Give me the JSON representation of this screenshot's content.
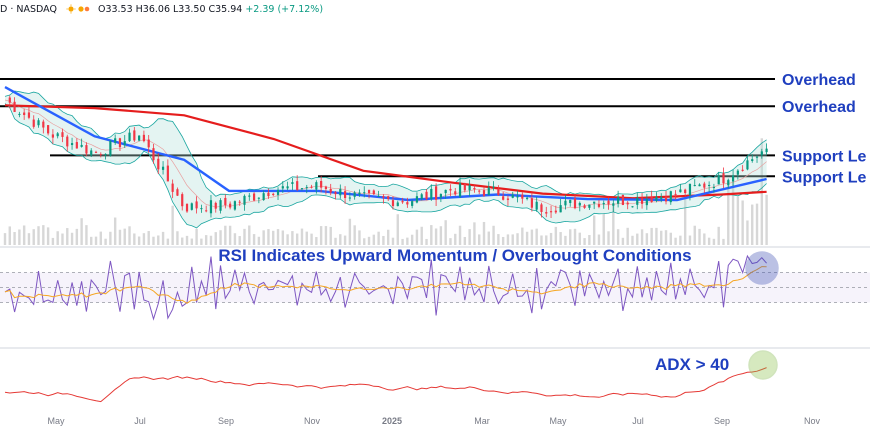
{
  "header": {
    "symbol": "D · NASDAQ",
    "open": "O33.53",
    "high": "H36.06",
    "low": "L33.50",
    "close": "C35.94",
    "change": "+2.39 (+7.12%)"
  },
  "colors": {
    "price_up": "#089981",
    "price_down": "#f23645",
    "sma_50": "#2962ff",
    "sma_200": "#e51d1d",
    "bollinger": "#1aa6a0",
    "rsi": "#7e57c2",
    "rsi_ma": "#f5a623",
    "adx": "#e53935",
    "volume": "#c9c9c9"
  },
  "chart_data": [
    {
      "type": "candlestick",
      "panel": "price",
      "overlays": [
        "50-day moving average",
        "200-day moving average",
        "Bollinger Bands"
      ],
      "horizontal_lines": [
        {
          "label": "Overhead",
          "value": 43.6
        },
        {
          "label": "Overhead",
          "value": 40.6
        },
        {
          "label": "Support Le",
          "value": 35.2
        },
        {
          "label": "Support Le",
          "value": 32.9
        }
      ],
      "x_ticks": [
        "May",
        "Jul",
        "Sep",
        "Nov",
        "2025",
        "Mar",
        "May",
        "Jul",
        "Sep",
        "Nov"
      ],
      "close_path": [
        {
          "month": "Apr 2024",
          "close": 41.3
        },
        {
          "month": "May 2024",
          "close": 37.6
        },
        {
          "month": "Jun 2024",
          "close": 35.5
        },
        {
          "month": "Jul 2024",
          "close": 37.5
        },
        {
          "month": "Aug 2024",
          "close": 29.5
        },
        {
          "month": "Sep 2024",
          "close": 29.8
        },
        {
          "month": "Oct 2024",
          "close": 31.5
        },
        {
          "month": "Nov 2024",
          "close": 31.8
        },
        {
          "month": "Dec 2024",
          "close": 30.5
        },
        {
          "month": "Jan 2025",
          "close": 30.2
        },
        {
          "month": "Feb 2025",
          "close": 31.5
        },
        {
          "month": "Mar 2025",
          "close": 31.2
        },
        {
          "month": "Apr 2025",
          "close": 29.4
        },
        {
          "month": "May 2025",
          "close": 30.1
        },
        {
          "month": "Jun 2025",
          "close": 30.3
        },
        {
          "month": "Jul 2025",
          "close": 31.0
        },
        {
          "month": "Aug 2025",
          "close": 32.6
        },
        {
          "month": "Sep 2025",
          "close": 35.94
        }
      ],
      "sma_200_path": [
        {
          "month": "Apr 2024",
          "value": 40.7
        },
        {
          "month": "Jun 2024",
          "value": 40.4
        },
        {
          "month": "Aug 2024",
          "value": 39.6
        },
        {
          "month": "Oct 2024",
          "value": 37.0
        },
        {
          "month": "Dec 2024",
          "value": 33.5
        },
        {
          "month": "Feb 2025",
          "value": 32.2
        },
        {
          "month": "Apr 2025",
          "value": 31.0
        },
        {
          "month": "Jun 2025",
          "value": 30.5
        },
        {
          "month": "Aug 2025",
          "value": 30.9
        },
        {
          "month": "Sep 2025",
          "value": 31.2
        }
      ],
      "sma_50_path": [
        {
          "month": "Apr 2024",
          "value": 42.7
        },
        {
          "month": "Jun 2024",
          "value": 37.3
        },
        {
          "month": "Aug 2024",
          "value": 34.7
        },
        {
          "month": "Sep 2024",
          "value": 31.3
        },
        {
          "month": "Nov 2024",
          "value": 31.3
        },
        {
          "month": "Jan 2025",
          "value": 30.3
        },
        {
          "month": "Mar 2025",
          "value": 30.9
        },
        {
          "month": "May 2025",
          "value": 30.4
        },
        {
          "month": "Jul 2025",
          "value": 30.3
        },
        {
          "month": "Sep 2025",
          "value": 32.6
        }
      ]
    },
    {
      "type": "line",
      "panel": "rsi",
      "annotation": "RSI Indicates Upward Momentum / Overbought Conditions",
      "overbought": 70,
      "oversold": 30,
      "ylim": [
        0,
        100
      ]
    },
    {
      "type": "line",
      "panel": "adx",
      "annotation": "ADX > 40",
      "ylim": [
        0,
        60
      ]
    }
  ]
}
